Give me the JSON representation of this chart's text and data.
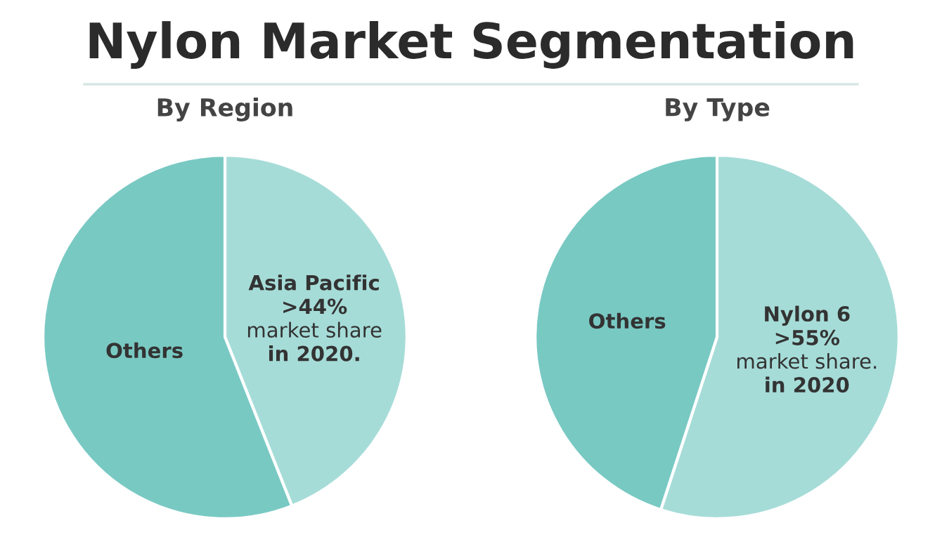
{
  "chart_data": [
    {
      "type": "pie",
      "title": "By Region",
      "categories": [
        "Asia Pacific",
        "Others"
      ],
      "values": [
        44,
        56
      ],
      "colors": [
        "#a6dcd8",
        "#79c9c3"
      ],
      "annotations": [
        "Nylon Market Segmentation",
        {
          "text": ">44%\nmarket share\nin 2020.",
          "x": "Asia Pacific"
        }
      ]
    },
    {
      "type": "pie",
      "title": "By Type",
      "categories": [
        "Nylon 6",
        "Others"
      ],
      "values": [
        55,
        45
      ],
      "colors": [
        "#a6dcd8",
        "#79c9c3"
      ],
      "annotations": [
        {
          "text": ">55%\nmarket share.\nin 2020",
          "x": "Nylon 6"
        }
      ]
    }
  ]
}
